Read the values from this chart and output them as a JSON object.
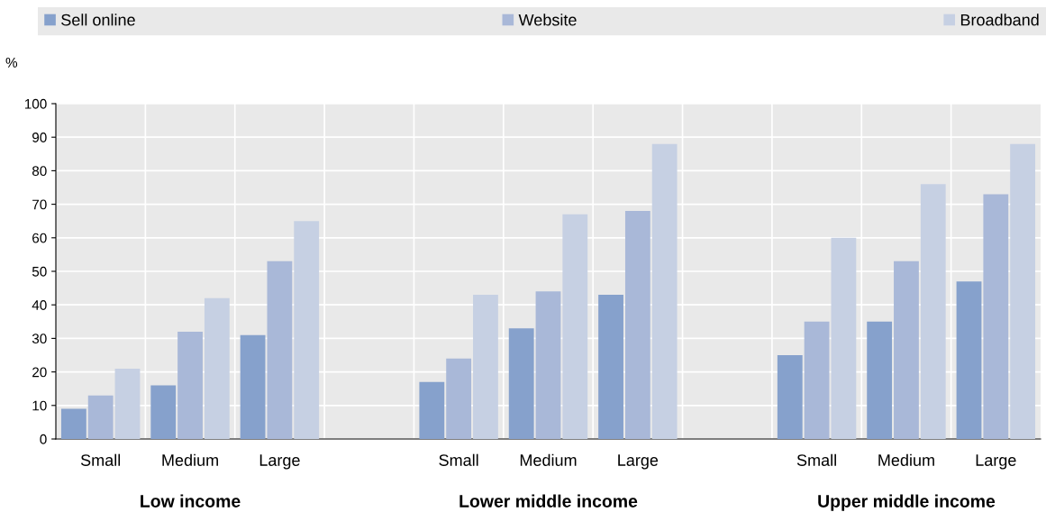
{
  "chart_data": {
    "type": "bar",
    "ylabel": "%",
    "categories": [
      "Small",
      "Medium",
      "Large",
      null,
      "Small",
      "Medium",
      "Large",
      null,
      "Small",
      "Medium",
      "Large"
    ],
    "series": [
      {
        "name": "Sell online",
        "color": "#86a1cc",
        "values": [
          9,
          16,
          31,
          null,
          17,
          33,
          43,
          null,
          25,
          35,
          47
        ]
      },
      {
        "name": "Website",
        "color": "#a9b8d8",
        "values": [
          13,
          32,
          53,
          null,
          24,
          44,
          68,
          null,
          35,
          53,
          73
        ]
      },
      {
        "name": "Broadband",
        "color": "#c6d0e3",
        "values": [
          21,
          42,
          65,
          null,
          43,
          67,
          88,
          null,
          60,
          76,
          88
        ]
      }
    ],
    "annotations": [
      "Low income",
      "Lower middle income",
      "Upper middle income"
    ],
    "ylim": [
      0,
      100
    ],
    "yticks": [
      0,
      10,
      20,
      30,
      40,
      50,
      60,
      70,
      80,
      90,
      100
    ],
    "grid": true,
    "legend": "top"
  }
}
